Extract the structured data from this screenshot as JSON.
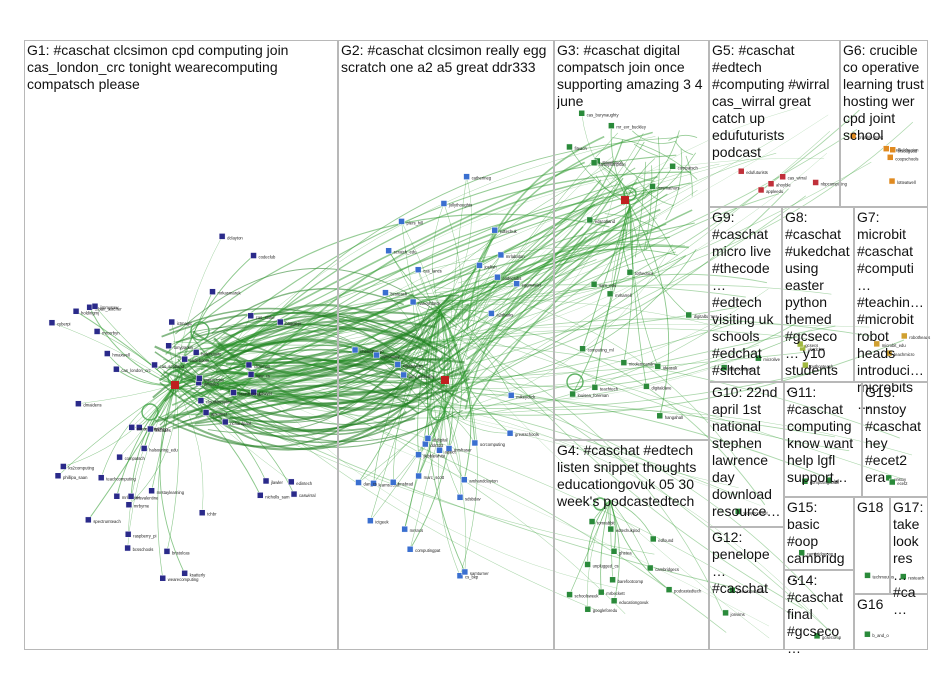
{
  "groups": [
    {
      "id": "G1",
      "label": "G1: #caschat clcsimon cpd computing join cas_london_crc tonight wearecomputing compatsch please"
    },
    {
      "id": "G2",
      "label": "G2: #caschat clcsimon really egg scratch one a2 a5 great ddr333"
    },
    {
      "id": "G3",
      "label": "G3: #caschat digital compatsch join once supporting amazing 3 4 june"
    },
    {
      "id": "G4",
      "label": "G4: #caschat #edtech listen snippet thoughts educationgovuk 05 30 week's podcastedtech"
    },
    {
      "id": "G5",
      "label": "G5: #caschat #edtech #computing #wirral cas_wirral great catch up edufuturists podcast"
    },
    {
      "id": "G6",
      "label": "G6: crucible co operative learning trust hosting wer cpd joint school"
    },
    {
      "id": "G7",
      "label": "G7: microbit #caschat #computi… #teachin… #microbit robot heads introduci… microbits…"
    },
    {
      "id": "G8",
      "label": "G8: #caschat #ukedchat using easter python themed #gcseco… y10 students…"
    },
    {
      "id": "G9",
      "label": "G9: #caschat micro live #thecode… #edtech visiting uk schools #edchat #sltchat"
    },
    {
      "id": "G10",
      "label": "G10: 22nd april 1st national stephen lawrence day download resource…"
    },
    {
      "id": "G11",
      "label": "G11: #caschat computing know want help lgfl support…"
    },
    {
      "id": "G12",
      "label": "G12: penelope… #caschat"
    },
    {
      "id": "G13",
      "label": "G13: nnstoy #caschat hey #ecet2 era"
    },
    {
      "id": "G14",
      "label": "G14: #caschat final #gcseco…"
    },
    {
      "id": "G15",
      "label": "G15: basic #oop cambridg…"
    },
    {
      "id": "G16",
      "label": "G16"
    },
    {
      "id": "G17",
      "label": "G17: take look res… #ca…"
    },
    {
      "id": "G18",
      "label": "G18"
    }
  ],
  "vertices": {
    "G1": [
      "clcsimon",
      "cas_london_crc",
      "mrcorbyn",
      "wearecomputing",
      "compatsch",
      "mrstaylearning",
      "codeboom",
      "mrlockyer",
      "mcallister",
      "ajwarner",
      "dmaidens",
      "cas_scotland",
      "saw_cs",
      "baggiejo",
      "codeclub",
      "raspberry_pi",
      "helenclaire",
      "jlawler",
      "simonhumphreys",
      "drhodes",
      "ictmagic",
      "msvalentine",
      "teachcomputing",
      "kscodes",
      "nicholls_sam",
      "phillipa_saan",
      "urban_teacher",
      "jimmysaw",
      "bcsschools",
      "clouthinmyline",
      "ks2computing",
      "edintech",
      "bristolcas",
      "mrkasmarek",
      "mercerdan",
      "holdingmj",
      "caswirral",
      "hmaxwell",
      "richardpaul",
      "tonyparkin",
      "cyberpi",
      "rjdwyer",
      "dclayton",
      "tchbr",
      "mrbyrne",
      "ksatterly",
      "brainbaking",
      "halsouring_edu",
      "spectrumteach",
      "cas_stoke"
    ],
    "G2": [
      "nancyhbeck",
      "ocrcomputing",
      "scratch_edu",
      "mrlabaton",
      "tom_mcsorley",
      "ddr333",
      "robstevens",
      "mrsfraser",
      "piers_hill",
      "cs_bkp",
      "catherineg",
      "jollythoughts",
      "drdigital",
      "marc_scott",
      "learnsocial",
      "ictgeek",
      "aqaict",
      "dan_cs",
      "joefish",
      "codeclubs",
      "mikeyclick",
      "computingpat",
      "sdsbdav",
      "samturner",
      "jkibblewhite",
      "chemistry_jo",
      "mrsncs",
      "bcsteach",
      "edtechuk",
      "lmsbrad",
      "cas_lancs",
      "a2sharks",
      "greatschools",
      "amhandclayton",
      "pjmooney",
      "eggmaster"
    ],
    "G3": [
      "compatsch",
      "digitaldave",
      "cas_burynaughty",
      "louisea_foreman",
      "nicolemcandrew",
      "stevebruce",
      "sam_edu",
      "digitalbarnes",
      "mrharrell",
      "teachtech",
      "tothedoca",
      "ideasuk",
      "computing_ml",
      "edscotland",
      "familysimpson",
      "mrsmathurs",
      "mr_evr_buckley",
      "fiteach",
      "hangahall"
    ],
    "G4": [
      "podcastedtech",
      "educationgovuk",
      "edtechukpod",
      "mrbeckett",
      "tomrabbit",
      "googleforedu",
      "barefootcomp",
      "ghstea",
      "cambridgecs",
      "unplugged_cs",
      "schoolsweek",
      "edfound"
    ],
    "G5": [
      "edufuturists",
      "cas_wirral",
      "appleedu",
      "ahoyble",
      "nbpcomputing"
    ],
    "G6": [
      "crucible_trust",
      "coopschools",
      "lotteatwell",
      "sheffieldregion",
      "srsdugood"
    ],
    "G7": [
      "microbit_edu",
      "robotheads",
      "teachmicro"
    ],
    "G8": [
      "ukedchat",
      "pythonteach",
      "gcsecs"
    ],
    "G9": [
      "microlive",
      "thecodeteam"
    ],
    "G10": [
      "sldaypodcast"
    ],
    "G11": [
      "lgfl",
      "computingatsch"
    ],
    "G12": [
      "penelopehinde",
      "jonvims"
    ],
    "G13": [
      "nnstoy",
      "ecet2"
    ],
    "G14": [
      "gcsecomp"
    ],
    "G15": [
      "cambridgeoop"
    ],
    "G16": [
      "b_and_o"
    ],
    "G17": [
      "resteach"
    ],
    "G18": [
      "techmoutns"
    ]
  },
  "colors": {
    "edge": "#2e9a2e",
    "edge_strong": "#1f7d1f",
    "self_loop": "#3aa040",
    "g1_node": "#2a2a8a",
    "g2_node": "#3a6fd0",
    "g3_node": "#2a8a3a",
    "g4_node": "#2a8a3a",
    "g5_node": "#c0303a",
    "g6_node": "#e08a20",
    "g7_node": "#d0a030",
    "g8_node": "#a0b840",
    "hub_red": "#c02020",
    "panel_border": "#b8b8b8"
  }
}
